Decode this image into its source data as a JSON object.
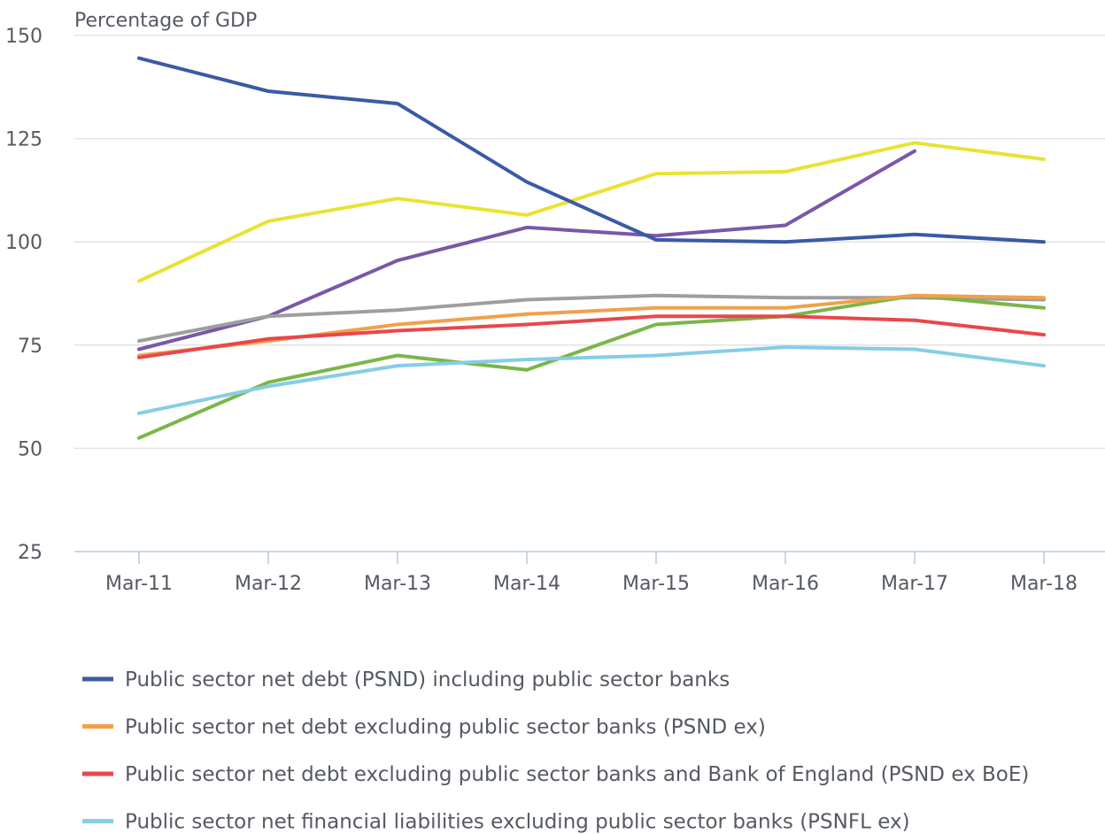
{
  "chart_data": {
    "type": "line",
    "ylabel": "Percentage of GDP",
    "ylim": [
      25,
      150
    ],
    "yticks": [
      25,
      50,
      75,
      100,
      125,
      150
    ],
    "grid": true,
    "legend_position": "bottom",
    "categories": [
      "Mar-11",
      "Mar-12",
      "Mar-13",
      "Mar-14",
      "Mar-15",
      "Mar-16",
      "Mar-17",
      "Mar-18"
    ],
    "series": [
      {
        "name": "Public sector net debt (PSND) including public sector banks",
        "color": "#3a5aa6",
        "values": [
          144.5,
          136.5,
          133.5,
          114.5,
          100.5,
          100,
          101.8,
          100
        ],
        "in_legend": true
      },
      {
        "name": "Public sector net debt excluding public sector banks (PSND ex)",
        "color": "#f2a04b",
        "values": [
          72.5,
          76,
          80,
          82.5,
          84,
          84,
          87,
          86.5
        ],
        "in_legend": true
      },
      {
        "name": "Public sector net debt excluding public sector banks and Bank of England (PSND ex BoE)",
        "color": "#e8474c",
        "values": [
          72,
          76.5,
          78.5,
          80,
          82,
          82,
          81,
          77.5
        ],
        "in_legend": true
      },
      {
        "name": "Public sector net financial liabilities excluding public sector banks (PSNFL ex)",
        "color": "#86cde5",
        "values": [
          58.5,
          65,
          70,
          71.5,
          72.5,
          74.5,
          74,
          70
        ],
        "in_legend": true
      },
      {
        "name": "",
        "color": "#e8e234",
        "values": [
          90.5,
          105,
          110.5,
          106.5,
          116.5,
          117,
          124,
          120
        ],
        "in_legend": false
      },
      {
        "name": "",
        "color": "#7a57a8",
        "values": [
          74,
          82,
          95.5,
          103.5,
          101.5,
          104,
          122,
          null
        ],
        "in_legend": false
      },
      {
        "name": "",
        "color": "#9e9e9e",
        "values": [
          76,
          82,
          83.5,
          86,
          87,
          86.5,
          86.5,
          86
        ],
        "in_legend": false
      },
      {
        "name": "",
        "color": "#7ab648",
        "values": [
          52.5,
          66,
          72.5,
          69,
          80,
          82,
          87,
          84
        ],
        "in_legend": false
      }
    ]
  }
}
